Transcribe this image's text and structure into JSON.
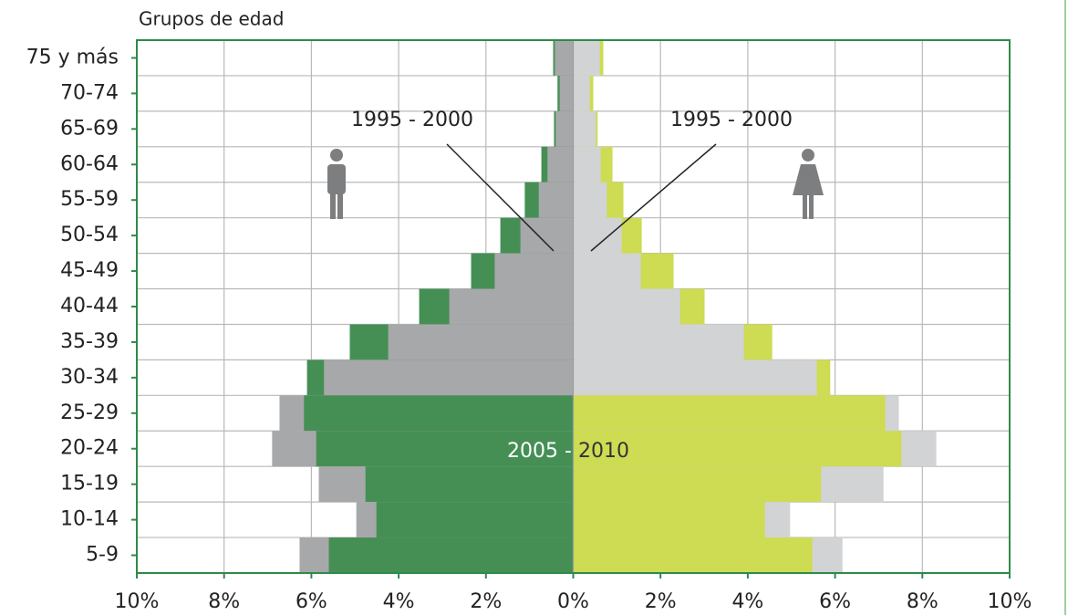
{
  "chart_data": {
    "type": "pyramid",
    "y_axis_label": "Grupos de edad",
    "categories": [
      "75 y más",
      "70-74",
      "65-69",
      "60-64",
      "55-59",
      "50-54",
      "45-49",
      "40-44",
      "35-39",
      "30-34",
      "25-29",
      "20-24",
      "15-19",
      "10-14",
      "5-9"
    ],
    "series": [
      {
        "name": "1995 - 2000",
        "men_color": "#a7a8aa",
        "women_color": "#d2d3d5",
        "men": [
          -0.42,
          -0.31,
          -0.4,
          -0.59,
          -0.79,
          -1.21,
          -1.8,
          -2.84,
          -4.24,
          -5.71,
          -6.73,
          -6.9,
          -5.83,
          -4.97,
          -6.27
        ],
        "women": [
          0.61,
          0.38,
          0.52,
          0.63,
          0.77,
          1.11,
          1.55,
          2.45,
          3.91,
          5.58,
          7.46,
          8.32,
          7.11,
          4.97,
          6.17
        ]
      },
      {
        "name": "2005 - 2010",
        "men_color": "#458f55",
        "women_color": "#cddc52",
        "men": [
          -0.46,
          -0.36,
          -0.44,
          -0.73,
          -1.11,
          -1.67,
          -2.34,
          -3.53,
          -5.12,
          -6.1,
          -6.17,
          -5.89,
          -4.76,
          -4.51,
          -5.6
        ],
        "women": [
          0.69,
          0.46,
          0.56,
          0.9,
          1.15,
          1.57,
          2.3,
          3.01,
          4.56,
          5.89,
          7.15,
          7.52,
          5.68,
          4.39,
          5.48
        ]
      }
    ],
    "xlim": [
      -10,
      10
    ],
    "xticks": [
      {
        "value": -10,
        "label": "10%"
      },
      {
        "value": -8,
        "label": "8%"
      },
      {
        "value": -6,
        "label": "6%"
      },
      {
        "value": -4,
        "label": "4%"
      },
      {
        "value": -2,
        "label": "2%"
      },
      {
        "value": 0,
        "label": "0%"
      },
      {
        "value": 2,
        "label": "2%"
      },
      {
        "value": 4,
        "label": "4%"
      },
      {
        "value": 6,
        "label": "6%"
      },
      {
        "value": 8,
        "label": "8%"
      },
      {
        "value": 10,
        "label": "10%"
      }
    ],
    "grid": true
  }
}
